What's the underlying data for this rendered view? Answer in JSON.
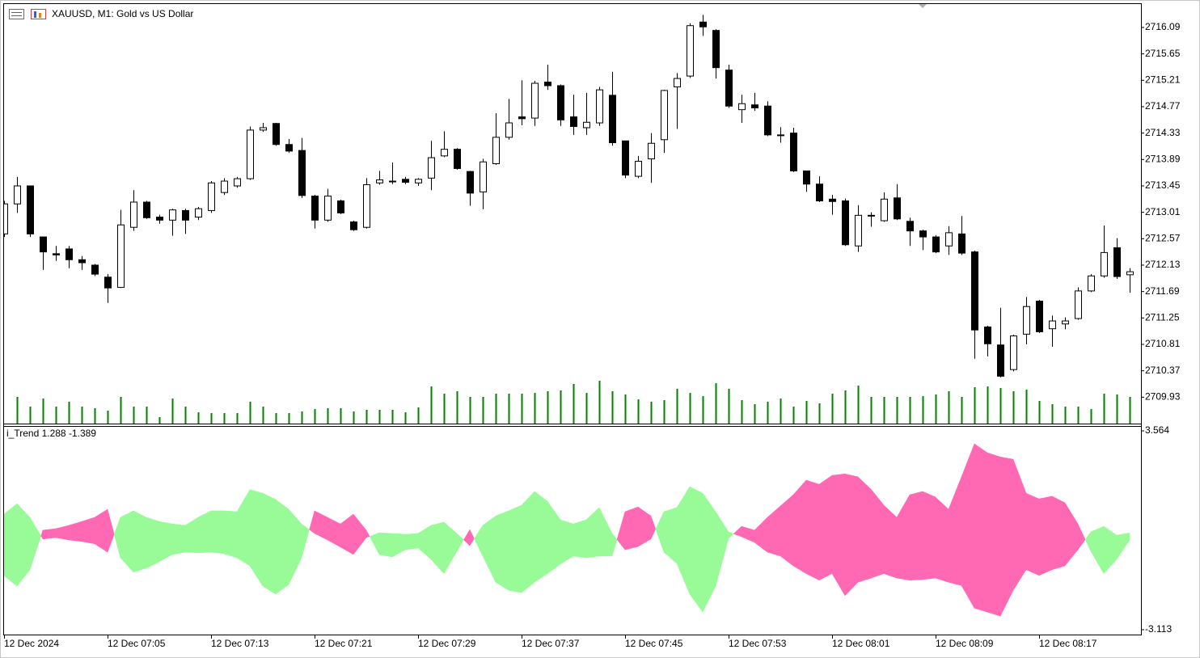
{
  "chart_data": [
    {
      "type": "candlestick",
      "title": "XAUUSD, M1:  Gold vs US Dollar",
      "categories": [
        "12 Dec 2024",
        null,
        null,
        null,
        null,
        null,
        null,
        null,
        "12 Dec 07:05",
        null,
        null,
        null,
        null,
        null,
        null,
        null,
        "12 Dec 07:13",
        null,
        null,
        null,
        null,
        null,
        null,
        null,
        "12 Dec 07:21",
        null,
        null,
        null,
        null,
        null,
        null,
        null,
        "12 Dec 07:29",
        null,
        null,
        null,
        null,
        null,
        null,
        null,
        "12 Dec 07:37",
        null,
        null,
        null,
        null,
        null,
        null,
        null,
        "12 Dec 07:45",
        null,
        null,
        null,
        null,
        null,
        null,
        null,
        "12 Dec 07:53",
        null,
        null,
        null,
        null,
        null,
        null,
        null,
        "12 Dec 08:01",
        null,
        null,
        null,
        null,
        null,
        null,
        null,
        "12 Dec 08:09",
        null,
        null,
        null,
        null,
        null,
        null,
        null,
        "12 Dec 08:17",
        null,
        null,
        null,
        null,
        null,
        null,
        null
      ],
      "open": [
        2712.65,
        2713.15,
        2713.45,
        2712.6,
        2712.32,
        2712.4,
        2712.22,
        2712.13,
        2711.93,
        2711.76,
        2712.76,
        2713.18,
        2712.93,
        2712.88,
        2713.04,
        2712.93,
        2713.04,
        2713.34,
        2713.45,
        2713.57,
        2714.38,
        2714.49,
        2714.14,
        2714.04,
        2713.28,
        2712.88,
        2713.2,
        2712.85,
        2712.76,
        2713.5,
        2713.53,
        2713.56,
        2713.5,
        2713.58,
        2713.95,
        2714.06,
        2713.69,
        2713.35,
        2713.82,
        2714.26,
        2714.6,
        2714.58,
        2715.18,
        2715.12,
        2714.6,
        2714.42,
        2714.5,
        2714.96,
        2714.2,
        2713.61,
        2713.9,
        2714.22,
        2715.1,
        2715.28,
        2716.18,
        2716.04,
        2715.38,
        2714.72,
        2714.8,
        2714.78,
        2714.3,
        2714.33,
        2713.7,
        2713.48,
        2713.23,
        2713.2,
        2712.45,
        2712.96,
        2712.87,
        2713.25,
        2712.86,
        2712.7,
        2712.6,
        2712.45,
        2712.65,
        2712.35,
        2711.1,
        2710.8,
        2710.39,
        2710.98,
        2711.53,
        2711.07,
        2711.15,
        2711.24,
        2711.7,
        2711.95,
        2712.42,
        2711.97
      ],
      "high": [
        2713.2,
        2713.6,
        2713.45,
        2712.6,
        2712.45,
        2712.45,
        2712.28,
        2712.15,
        2711.98,
        2713.05,
        2713.38,
        2713.2,
        2712.97,
        2713.07,
        2713.07,
        2713.1,
        2713.53,
        2713.58,
        2713.6,
        2714.44,
        2714.5,
        2714.5,
        2714.23,
        2714.25,
        2713.3,
        2713.4,
        2713.22,
        2712.87,
        2713.58,
        2713.7,
        2713.84,
        2713.6,
        2713.58,
        2714.2,
        2714.36,
        2714.08,
        2713.7,
        2713.9,
        2714.66,
        2714.9,
        2715.21,
        2715.2,
        2715.47,
        2715.14,
        2714.97,
        2715.0,
        2715.1,
        2715.35,
        2714.2,
        2713.95,
        2714.33,
        2715.05,
        2715.33,
        2716.16,
        2716.3,
        2716.06,
        2715.47,
        2714.97,
        2715.0,
        2714.86,
        2714.43,
        2714.42,
        2713.7,
        2713.61,
        2713.3,
        2713.24,
        2713.13,
        2713.01,
        2713.34,
        2713.48,
        2712.92,
        2712.72,
        2712.63,
        2712.78,
        2712.95,
        2712.37,
        2711.12,
        2711.42,
        2710.97,
        2711.6,
        2711.55,
        2711.29,
        2711.26,
        2711.76,
        2711.98,
        2712.79,
        2712.58,
        2712.08
      ],
      "low": [
        2712.6,
        2713.0,
        2712.6,
        2712.05,
        2712.2,
        2712.08,
        2712.05,
        2711.95,
        2711.5,
        2711.75,
        2712.7,
        2712.9,
        2712.82,
        2712.62,
        2712.65,
        2712.88,
        2713.0,
        2713.3,
        2713.42,
        2713.55,
        2714.35,
        2714.12,
        2714.0,
        2713.25,
        2712.74,
        2712.85,
        2712.98,
        2712.7,
        2712.74,
        2713.47,
        2713.48,
        2713.48,
        2713.45,
        2713.38,
        2713.93,
        2713.72,
        2713.12,
        2713.06,
        2713.8,
        2714.22,
        2714.46,
        2714.45,
        2715.05,
        2714.45,
        2714.3,
        2714.3,
        2714.45,
        2714.12,
        2713.58,
        2713.58,
        2713.5,
        2714.0,
        2714.4,
        2715.25,
        2715.95,
        2715.24,
        2714.75,
        2714.5,
        2714.7,
        2714.28,
        2714.17,
        2713.68,
        2713.35,
        2713.18,
        2712.97,
        2712.45,
        2712.35,
        2712.77,
        2712.85,
        2712.88,
        2712.45,
        2712.38,
        2712.33,
        2712.3,
        2712.3,
        2710.57,
        2710.61,
        2710.26,
        2710.36,
        2710.81,
        2711.0,
        2710.77,
        2711.06,
        2711.22,
        2711.68,
        2711.92,
        2711.9,
        2711.67
      ],
      "close": [
        2713.15,
        2713.45,
        2712.65,
        2712.35,
        2712.3,
        2712.22,
        2712.17,
        2711.98,
        2711.75,
        2712.8,
        2713.18,
        2712.92,
        2712.88,
        2713.05,
        2712.88,
        2713.07,
        2713.5,
        2713.53,
        2713.57,
        2714.38,
        2714.42,
        2714.14,
        2714.03,
        2713.29,
        2712.88,
        2713.28,
        2713.0,
        2712.72,
        2713.47,
        2713.55,
        2713.53,
        2713.51,
        2713.56,
        2713.92,
        2714.06,
        2713.74,
        2713.33,
        2713.85,
        2714.26,
        2714.5,
        2714.57,
        2715.16,
        2715.12,
        2714.55,
        2714.44,
        2714.51,
        2715.05,
        2714.17,
        2713.63,
        2713.86,
        2714.16,
        2715.04,
        2715.24,
        2716.12,
        2716.1,
        2715.42,
        2714.78,
        2714.82,
        2714.75,
        2714.3,
        2714.3,
        2713.7,
        2713.48,
        2713.2,
        2713.19,
        2712.47,
        2712.96,
        2712.95,
        2713.23,
        2712.9,
        2712.7,
        2712.6,
        2712.35,
        2712.67,
        2712.33,
        2711.05,
        2710.82,
        2710.28,
        2710.95,
        2711.44,
        2711.02,
        2711.2,
        2711.2,
        2711.7,
        2711.95,
        2712.34,
        2711.94,
        2712.02
      ],
      "volume": [
        null,
        33,
        21,
        31,
        21,
        27,
        21,
        19,
        16,
        33,
        21,
        21,
        8,
        31,
        21,
        14,
        13,
        13,
        13,
        27,
        21,
        13,
        13,
        15,
        18,
        19,
        19,
        15,
        17,
        17,
        17,
        14,
        20,
        46,
        37,
        40,
        33,
        33,
        37,
        37,
        37,
        38,
        40,
        41,
        49,
        38,
        53,
        40,
        36,
        30,
        27,
        29,
        43,
        38,
        34,
        50,
        43,
        29,
        24,
        27,
        31,
        21,
        28,
        25,
        37,
        41,
        47,
        33,
        33,
        33,
        33,
        34,
        36,
        40,
        33,
        45,
        46,
        44,
        40,
        42,
        28,
        24,
        21,
        21,
        18,
        37,
        36,
        33
      ],
      "up_color": "#ffffff",
      "down_color": "#000000",
      "volume_color": "#008000",
      "ylim": [
        2709.49,
        2716.48
      ],
      "yticks": [
        2716.09,
        2715.65,
        2715.21,
        2714.77,
        2714.33,
        2713.89,
        2713.45,
        2713.01,
        2712.57,
        2712.13,
        2711.69,
        2711.25,
        2710.81,
        2710.37,
        2709.93
      ]
    },
    {
      "type": "area",
      "title": "i_Trend 1.288 -1.389",
      "series": [
        {
          "color": "#98fb98",
          "values": [
            0.77,
            1.12,
            0.66,
            -0.07,
            -0.02,
            -0.1,
            -0.15,
            -0.23,
            -0.51,
            0.66,
            0.88,
            0.66,
            0.52,
            0.44,
            0.39,
            0.66,
            0.88,
            0.88,
            0.85,
            1.59,
            1.47,
            1.26,
            0.93,
            0.44,
            0.12,
            -0.1,
            -0.34,
            -0.59,
            -0.02,
            0.14,
            0.12,
            0.09,
            0.12,
            0.39,
            0.5,
            0.12,
            -0.29,
            0.39,
            0.71,
            0.88,
            1.07,
            1.53,
            1.2,
            0.58,
            0.44,
            0.58,
            0.99,
            0.12,
            -0.43,
            -0.32,
            -0.07,
            0.85,
            0.99,
            1.69,
            1.47,
            0.85,
            0.17,
            0.01,
            -0.18,
            -0.51,
            -0.64,
            -0.97,
            -1.23,
            -1.45,
            -1.23,
            -1.97,
            -1.52,
            -1.38,
            -1.23,
            -1.38,
            -1.45,
            -1.43,
            -1.38,
            -1.52,
            -1.63,
            -2.39,
            -2.52,
            -2.66,
            -1.79,
            -1.1,
            -1.29,
            -1.1,
            -0.97,
            -0.43,
            0.17,
            0.36,
            0.06,
            0.14
          ]
        },
        {
          "color": "#ff69b4",
          "values": [
            -1.3,
            -1.65,
            -1.1,
            0.23,
            0.28,
            0.39,
            0.52,
            0.66,
            0.93,
            -0.7,
            -1.18,
            -1.05,
            -0.83,
            -0.59,
            -0.51,
            -0.53,
            -0.51,
            -0.56,
            -0.7,
            -0.97,
            -1.65,
            -1.92,
            -1.6,
            -0.7,
            0.88,
            0.66,
            0.44,
            0.77,
            0.23,
            -0.59,
            -0.67,
            -0.43,
            -0.37,
            -0.75,
            -1.23,
            -0.48,
            0.25,
            -0.64,
            -1.52,
            -1.79,
            -1.87,
            -1.52,
            -1.23,
            -0.91,
            -0.64,
            -0.7,
            -0.64,
            -0.64,
            0.85,
            1.01,
            0.71,
            -0.51,
            -0.89,
            -1.92,
            -2.52,
            -1.65,
            -0.05,
            0.36,
            0.23,
            0.66,
            1.04,
            1.42,
            1.91,
            1.77,
            2.07,
            2.12,
            2.02,
            1.61,
            1.07,
            0.66,
            1.42,
            1.53,
            1.34,
            0.93,
            2.02,
            3.13,
            2.83,
            2.69,
            2.61,
            1.47,
            1.28,
            1.37,
            1.15,
            0.44,
            -0.48,
            -1.23,
            -0.75,
            -0.1
          ]
        }
      ],
      "ylim": [
        -3.113,
        3.564
      ],
      "yticks": [
        3.564,
        -3.113
      ]
    }
  ]
}
